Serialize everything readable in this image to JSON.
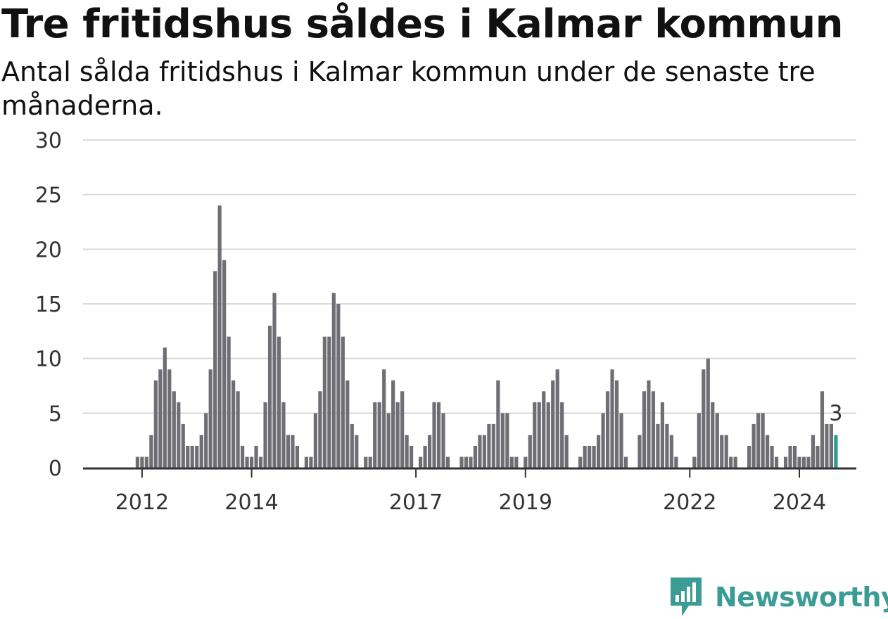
{
  "title": "Tre fritidshus såldes i Kalmar kommun",
  "subtitle": "Antal sålda fritidshus i Kalmar kommun under de senaste tre månaderna.",
  "logo_text": "Newsworthy",
  "colors": {
    "bar": "#6f6e74",
    "highlight": "#2a9d8f",
    "grid": "#d9d9d9",
    "axis": "#333333",
    "brand": "#3b9c95"
  },
  "chart_data": {
    "type": "bar",
    "title": "Tre fritidshus såldes i Kalmar kommun",
    "subtitle": "Antal sålda fritidshus i Kalmar kommun under de senaste tre månaderna.",
    "xlabel": "",
    "ylabel": "",
    "ylim": [
      0,
      30
    ],
    "yticks": [
      0,
      5,
      10,
      15,
      20,
      25,
      30
    ],
    "xticks": [
      "2012",
      "2014",
      "2017",
      "2019",
      "2022",
      "2024"
    ],
    "grid": true,
    "highlight_label": "3",
    "x_start": "2011-04",
    "x_end": "2024-12",
    "values": [
      0,
      0,
      0,
      0,
      0,
      0,
      0,
      0,
      1,
      1,
      1,
      3,
      8,
      9,
      11,
      9,
      7,
      6,
      4,
      2,
      2,
      2,
      3,
      5,
      9,
      18,
      24,
      19,
      12,
      8,
      7,
      2,
      1,
      1,
      2,
      1,
      6,
      13,
      16,
      12,
      6,
      3,
      3,
      2,
      0,
      1,
      1,
      5,
      7,
      12,
      12,
      16,
      15,
      12,
      8,
      4,
      3,
      0,
      1,
      1,
      6,
      6,
      9,
      5,
      8,
      6,
      7,
      3,
      2,
      0,
      1,
      2,
      3,
      6,
      6,
      5,
      1,
      0,
      0,
      1,
      1,
      1,
      2,
      3,
      3,
      4,
      4,
      8,
      5,
      5,
      1,
      1,
      0,
      1,
      3,
      6,
      6,
      7,
      6,
      8,
      9,
      6,
      3,
      0,
      0,
      1,
      2,
      2,
      2,
      3,
      5,
      7,
      9,
      8,
      5,
      1,
      0,
      0,
      3,
      7,
      8,
      7,
      4,
      6,
      4,
      3,
      1,
      0,
      0,
      0,
      1,
      5,
      9,
      10,
      6,
      5,
      3,
      3,
      1,
      1,
      0,
      0,
      2,
      4,
      5,
      5,
      3,
      2,
      1,
      0,
      1,
      2,
      2,
      1,
      1,
      1,
      3,
      2,
      7,
      4,
      4,
      3
    ]
  }
}
